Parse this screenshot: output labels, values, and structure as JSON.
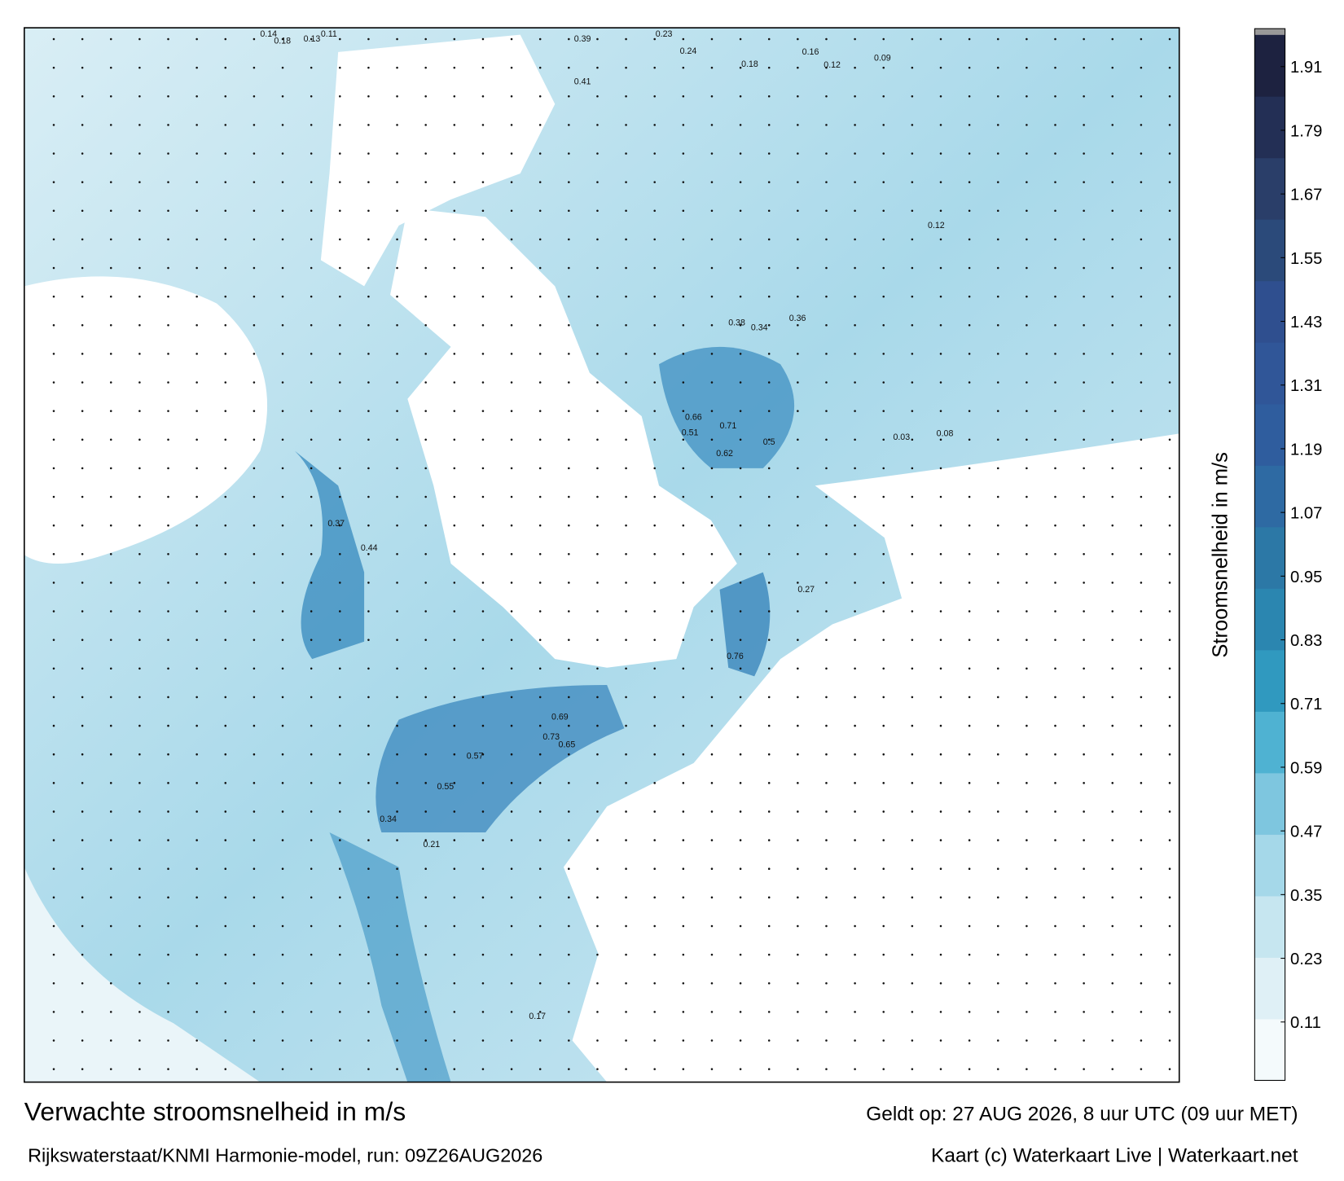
{
  "map": {
    "colorbar": {
      "label": "Stroomsnelheid in m/s",
      "ticks": [
        0.11,
        0.23,
        0.35,
        0.47,
        0.59,
        0.71,
        0.83,
        0.95,
        1.07,
        1.19,
        1.31,
        1.43,
        1.55,
        1.67,
        1.79,
        1.91
      ],
      "clim": [
        0,
        1.97
      ],
      "colors": [
        "#f4fafc",
        "#dff0f6",
        "#c6e6f0",
        "#a5d8e9",
        "#7ec6df",
        "#4fb2d2",
        "#3099bf",
        "#2b86b0",
        "#2c78a6",
        "#2e6aa3",
        "#2f5d9e",
        "#305698",
        "#2f4f8f",
        "#2b4a7a",
        "#2a3e69",
        "#232f55",
        "#1d2240"
      ]
    },
    "speed_labels": [
      0.14,
      0.18,
      0.13,
      0.11,
      0.39,
      0.41,
      0.23,
      0.24,
      0.18,
      0.16,
      0.12,
      0.09,
      0.38,
      0.34,
      0.36,
      0.66,
      0.71,
      0.5,
      0.62,
      0.51,
      0.37,
      0.44,
      0.69,
      0.73,
      0.65,
      0.57,
      0.55,
      0.34,
      0.27,
      0.76,
      0.12,
      0.08,
      0.03,
      0.21,
      0.17
    ]
  },
  "footer": {
    "title": "Verwachte stroomsnelheid in m/s",
    "source": "Rijkswaterstaat/KNMI Harmonie-model, run: 09Z26AUG2026",
    "valid": "Geldt op: 27 AUG 2026, 8 uur UTC (09 uur MET)",
    "credit": "Kaart (c) Waterkaart Live | Waterkaart.net"
  }
}
